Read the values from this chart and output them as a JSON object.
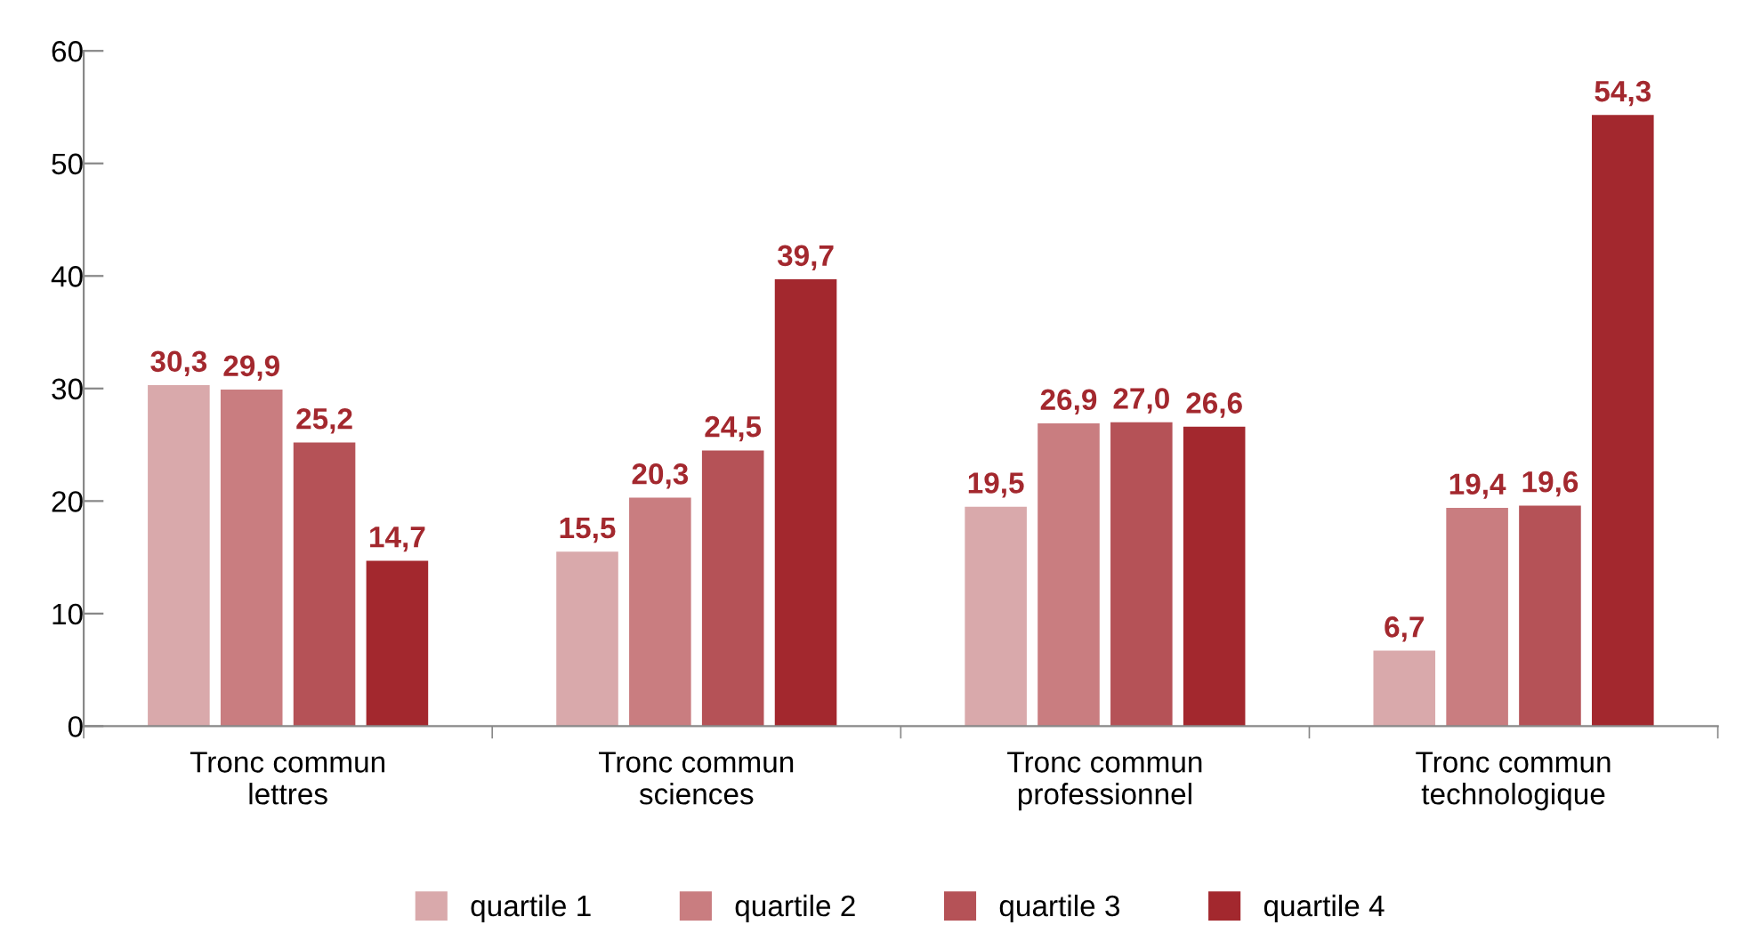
{
  "chart_data": {
    "type": "bar",
    "categories": [
      "Tronc commun\nlettres",
      "Tronc commun\nsciences",
      "Tronc commun\nprofessionnel",
      "Tronc commun\ntechnologique"
    ],
    "series": [
      {
        "name": "quartile 1",
        "color": "#d9a9ab",
        "values": [
          30.3,
          15.5,
          19.5,
          6.7
        ],
        "value_labels": [
          "30,3",
          "15,5",
          "19,5",
          "6,7"
        ]
      },
      {
        "name": "quartile 2",
        "color": "#c97d80",
        "values": [
          29.9,
          20.3,
          26.9,
          19.4
        ],
        "value_labels": [
          "29,9",
          "20,3",
          "26,9",
          "19,4"
        ]
      },
      {
        "name": "quartile 3",
        "color": "#b55257",
        "values": [
          25.2,
          24.5,
          27.0,
          19.6
        ],
        "value_labels": [
          "25,2",
          "24,5",
          "27,0",
          "19,6"
        ]
      },
      {
        "name": "quartile 4",
        "color": "#a3282e",
        "values": [
          14.7,
          39.7,
          26.6,
          54.3
        ],
        "value_labels": [
          "14,7",
          "39,7",
          "26,6",
          "54,3"
        ]
      }
    ],
    "ylim": [
      0,
      60
    ],
    "yticks": [
      0,
      10,
      20,
      30,
      40,
      50,
      60
    ],
    "grid": false,
    "legend": "bottom"
  }
}
